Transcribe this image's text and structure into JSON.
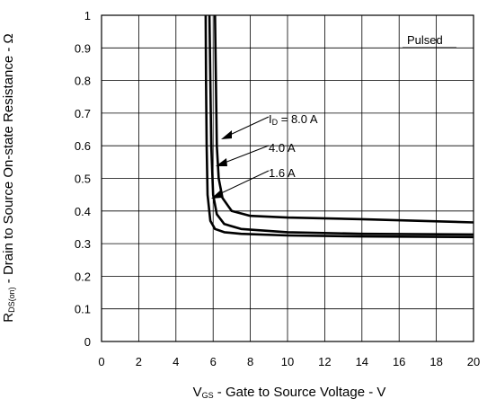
{
  "chart_data": {
    "type": "line",
    "title": "",
    "xlabel": {
      "main": "V",
      "sub": "GS",
      "rest": " - Gate to Source Voltage - V"
    },
    "ylabel": {
      "main": "R",
      "sub": "DS(on)",
      "rest": " - Drain to Source On-state Resistance - Ω"
    },
    "xlim": [
      0,
      20
    ],
    "ylim": [
      0,
      1
    ],
    "xticks": [
      "0",
      "2",
      "4",
      "6",
      "8",
      "10",
      "12",
      "14",
      "16",
      "18",
      "20"
    ],
    "yticks": [
      "0",
      "0.1",
      "0.2",
      "0.3",
      "0.4",
      "0.5",
      "0.6",
      "0.7",
      "0.8",
      "0.9",
      "1"
    ],
    "grid": true,
    "note": "Pulsed",
    "series": [
      {
        "name": "ID = 8.0 A",
        "label_main": "I",
        "label_sub": "D",
        "label_rest": " = 8.0 A",
        "x": [
          6.1,
          6.15,
          6.2,
          6.3,
          6.5,
          7.0,
          8.0,
          10,
          14,
          20
        ],
        "y": [
          1.0,
          0.8,
          0.6,
          0.5,
          0.44,
          0.4,
          0.385,
          0.38,
          0.375,
          0.365
        ]
      },
      {
        "name": "4.0 A",
        "label_main": "4.0 A",
        "label_sub": "",
        "label_rest": "",
        "x": [
          5.8,
          5.85,
          5.9,
          6.0,
          6.2,
          6.6,
          7.5,
          10,
          14,
          20
        ],
        "y": [
          1.0,
          0.8,
          0.6,
          0.45,
          0.39,
          0.36,
          0.345,
          0.335,
          0.33,
          0.328
        ]
      },
      {
        "name": "1.6 A",
        "label_main": "1.6 A",
        "label_sub": "",
        "label_rest": "",
        "x": [
          5.6,
          5.62,
          5.65,
          5.7,
          5.85,
          6.1,
          6.6,
          7.5,
          10,
          14,
          20
        ],
        "y": [
          1.0,
          0.8,
          0.6,
          0.45,
          0.37,
          0.345,
          0.335,
          0.33,
          0.325,
          0.322,
          0.32
        ]
      }
    ],
    "line_color": "#000000"
  }
}
